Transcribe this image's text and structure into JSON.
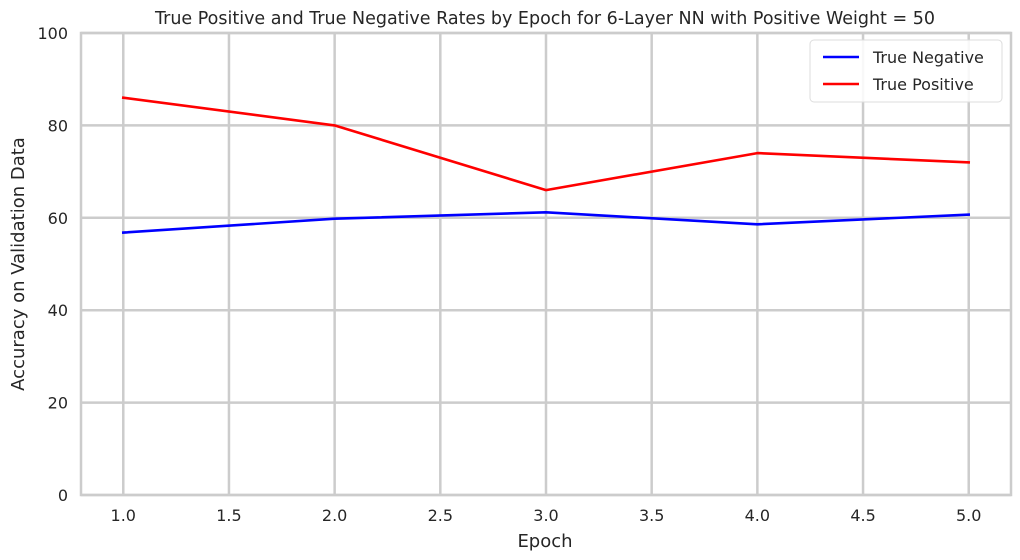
{
  "chart_data": {
    "type": "line",
    "title": "True Positive and True Negative Rates by Epoch for 6-Layer NN with Positive Weight = 50",
    "xlabel": "Epoch",
    "ylabel": "Accuracy on Validation Data",
    "xlim": [
      0.8,
      5.2
    ],
    "ylim": [
      0,
      100
    ],
    "x_ticks": [
      "1.0",
      "1.5",
      "2.0",
      "2.5",
      "3.0",
      "3.5",
      "4.0",
      "4.5",
      "5.0"
    ],
    "y_ticks": [
      "0",
      "20",
      "40",
      "60",
      "80",
      "100"
    ],
    "x": [
      1,
      2,
      3,
      4,
      5
    ],
    "series": [
      {
        "name": "True Negative",
        "color": "#0000ff",
        "values": [
          56.8,
          59.8,
          61.2,
          58.6,
          60.7
        ]
      },
      {
        "name": "True Positive",
        "color": "#ff0000",
        "values": [
          86.0,
          80.0,
          66.0,
          74.0,
          72.0
        ]
      }
    ],
    "grid": true,
    "legend_position": "top-right"
  }
}
